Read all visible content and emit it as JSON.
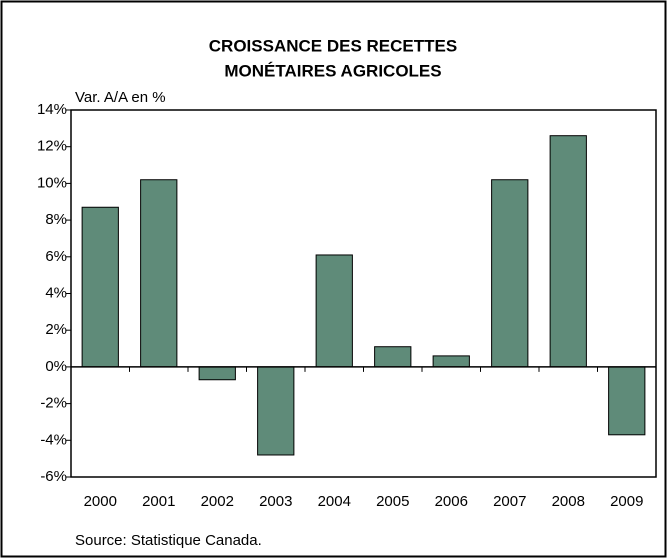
{
  "chart_data": {
    "type": "bar",
    "title": [
      "CROISSANCE DES RECETTES",
      "MONÉTAIRES AGRICOLES"
    ],
    "y_axis_label": "Var. A/A en %",
    "categories": [
      "2000",
      "2001",
      "2002",
      "2003",
      "2004",
      "2005",
      "2006",
      "2007",
      "2008",
      "2009"
    ],
    "values": [
      8.7,
      10.2,
      -0.7,
      -4.8,
      6.1,
      1.1,
      0.6,
      10.2,
      12.6,
      -3.7
    ],
    "color": "#5f8b79",
    "ylim": [
      -6,
      14
    ],
    "yticks": [
      {
        "value": -6,
        "label": "-6%"
      },
      {
        "value": -4,
        "label": "-4%"
      },
      {
        "value": -2,
        "label": "-2%"
      },
      {
        "value": 0,
        "label": "0%"
      },
      {
        "value": 2,
        "label": "2%"
      },
      {
        "value": 4,
        "label": "4%"
      },
      {
        "value": 6,
        "label": "6%"
      },
      {
        "value": 8,
        "label": "8%"
      },
      {
        "value": 10,
        "label": "10%"
      },
      {
        "value": 12,
        "label": "12%"
      },
      {
        "value": 14,
        "label": "14%"
      }
    ],
    "grid": false,
    "source": "Source: Statistique Canada."
  }
}
